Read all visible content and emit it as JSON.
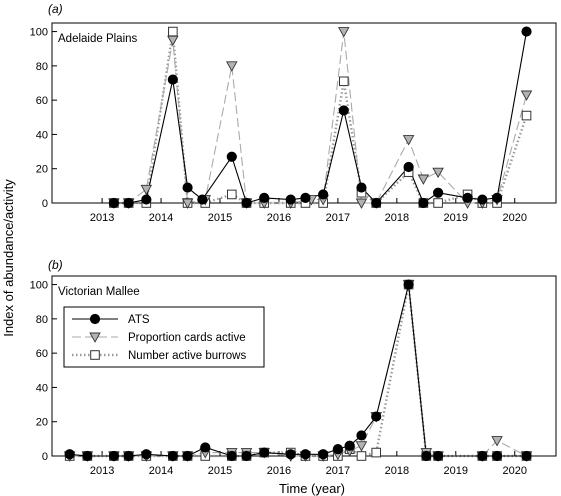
{
  "chart_data": [
    {
      "type": "line",
      "panel_label": "(a)",
      "title": "Adelaide Plains",
      "xlabel": "Time (year)",
      "ylabel": "Index of abundance/activity",
      "xlim": [
        2012.15,
        2020.7
      ],
      "ylim": [
        0,
        105
      ],
      "x_ticks": [
        "2013",
        "2014",
        "2015",
        "2016",
        "2017",
        "2018",
        "2019",
        "2020"
      ],
      "y_ticks": [
        "0",
        "20",
        "40",
        "60",
        "80",
        "100"
      ],
      "grid": false,
      "legend": "none",
      "series": [
        {
          "name": "ATS",
          "color": "#000000",
          "marker": "circle",
          "line": "solid",
          "points": [
            [
              2013.2,
              0
            ],
            [
              2013.45,
              0
            ],
            [
              2013.75,
              2
            ],
            [
              2014.2,
              72
            ],
            [
              2014.45,
              9
            ],
            [
              2014.7,
              2
            ],
            [
              2015.2,
              27
            ],
            [
              2015.45,
              0
            ],
            [
              2015.75,
              3
            ],
            [
              2016.2,
              2
            ],
            [
              2016.45,
              3
            ],
            [
              2016.75,
              5
            ],
            [
              2017.1,
              54
            ],
            [
              2017.4,
              9
            ],
            [
              2017.65,
              0
            ],
            [
              2018.2,
              21
            ],
            [
              2018.45,
              0
            ],
            [
              2018.7,
              6
            ],
            [
              2019.2,
              3
            ],
            [
              2019.45,
              2
            ],
            [
              2019.7,
              3
            ],
            [
              2020.2,
              100
            ]
          ]
        },
        {
          "name": "Proportion cards active",
          "color": "#aaaaaa",
          "marker": "triangle-down",
          "line": "dashed",
          "points": [
            [
              2013.2,
              0
            ],
            [
              2013.45,
              0
            ],
            [
              2013.75,
              8
            ],
            [
              2014.2,
              95
            ],
            [
              2014.45,
              0
            ],
            [
              2014.75,
              2
            ],
            [
              2015.2,
              80
            ],
            [
              2015.45,
              0
            ],
            [
              2015.75,
              0
            ],
            [
              2016.2,
              0
            ],
            [
              2016.55,
              2
            ],
            [
              2016.75,
              2
            ],
            [
              2017.1,
              100
            ],
            [
              2017.4,
              0
            ],
            [
              2017.65,
              0
            ],
            [
              2018.2,
              37
            ],
            [
              2018.45,
              14
            ],
            [
              2018.7,
              18
            ],
            [
              2019.2,
              0
            ],
            [
              2019.45,
              0
            ],
            [
              2019.7,
              2
            ],
            [
              2020.2,
              63
            ]
          ]
        },
        {
          "name": "Number active burrows",
          "color": "#999999",
          "marker": "square",
          "line": "dotted",
          "points": [
            [
              2013.2,
              0
            ],
            [
              2013.45,
              0
            ],
            [
              2013.75,
              0
            ],
            [
              2014.2,
              100
            ],
            [
              2014.45,
              0
            ],
            [
              2014.75,
              0
            ],
            [
              2015.2,
              5
            ],
            [
              2015.45,
              0
            ],
            [
              2015.75,
              0
            ],
            [
              2016.2,
              0
            ],
            [
              2016.45,
              0
            ],
            [
              2016.75,
              0
            ],
            [
              2017.1,
              71
            ],
            [
              2017.4,
              6
            ],
            [
              2017.65,
              0
            ],
            [
              2018.2,
              18
            ],
            [
              2018.45,
              0
            ],
            [
              2018.7,
              0
            ],
            [
              2019.2,
              5
            ],
            [
              2019.45,
              0
            ],
            [
              2019.7,
              0
            ],
            [
              2020.2,
              51
            ]
          ]
        }
      ]
    },
    {
      "type": "line",
      "panel_label": "(b)",
      "title": "Victorian Mallee",
      "xlabel": "Time (year)",
      "ylabel": "Index of abundance/activity",
      "xlim": [
        2012.15,
        2020.7
      ],
      "ylim": [
        0,
        105
      ],
      "x_ticks": [
        "2013",
        "2014",
        "2015",
        "2016",
        "2017",
        "2018",
        "2019",
        "2020"
      ],
      "y_ticks": [
        "0",
        "20",
        "40",
        "60",
        "80",
        "100"
      ],
      "grid": false,
      "legend": "upper-left",
      "series": [
        {
          "name": "ATS",
          "color": "#000000",
          "marker": "circle",
          "line": "solid",
          "points": [
            [
              2012.45,
              1
            ],
            [
              2012.75,
              0
            ],
            [
              2013.2,
              0
            ],
            [
              2013.45,
              0
            ],
            [
              2013.75,
              1
            ],
            [
              2014.2,
              0
            ],
            [
              2014.45,
              0
            ],
            [
              2014.75,
              5
            ],
            [
              2015.2,
              0
            ],
            [
              2015.45,
              0
            ],
            [
              2015.75,
              2
            ],
            [
              2016.2,
              1
            ],
            [
              2016.45,
              1
            ],
            [
              2016.75,
              1
            ],
            [
              2017.0,
              4
            ],
            [
              2017.2,
              6
            ],
            [
              2017.4,
              12
            ],
            [
              2017.65,
              23
            ],
            [
              2018.2,
              100
            ],
            [
              2018.5,
              0
            ],
            [
              2018.7,
              0
            ],
            [
              2019.45,
              0
            ],
            [
              2019.7,
              0
            ],
            [
              2020.2,
              0
            ]
          ]
        },
        {
          "name": "Proportion cards active",
          "color": "#aaaaaa",
          "marker": "triangle-down",
          "line": "dashed",
          "points": [
            [
              2012.45,
              0
            ],
            [
              2012.75,
              0
            ],
            [
              2013.2,
              0
            ],
            [
              2013.45,
              0
            ],
            [
              2013.75,
              0
            ],
            [
              2014.2,
              0
            ],
            [
              2014.45,
              0
            ],
            [
              2014.75,
              2
            ],
            [
              2015.2,
              2
            ],
            [
              2015.45,
              2
            ],
            [
              2015.75,
              2
            ],
            [
              2016.2,
              0
            ],
            [
              2016.45,
              0
            ],
            [
              2016.75,
              0
            ],
            [
              2017.0,
              1
            ],
            [
              2017.2,
              3
            ],
            [
              2017.4,
              6
            ],
            [
              2017.65,
              23
            ],
            [
              2018.2,
              100
            ],
            [
              2018.5,
              2
            ],
            [
              2018.7,
              0
            ],
            [
              2019.45,
              0
            ],
            [
              2019.7,
              9
            ],
            [
              2020.2,
              0
            ]
          ]
        },
        {
          "name": "Number active burrows",
          "color": "#999999",
          "marker": "square",
          "line": "dotted",
          "points": [
            [
              2012.45,
              0
            ],
            [
              2012.75,
              0
            ],
            [
              2013.2,
              0
            ],
            [
              2013.45,
              0
            ],
            [
              2013.75,
              0
            ],
            [
              2014.2,
              0
            ],
            [
              2014.45,
              0
            ],
            [
              2014.75,
              0
            ],
            [
              2015.2,
              0
            ],
            [
              2015.45,
              0
            ],
            [
              2015.75,
              2
            ],
            [
              2016.2,
              2
            ],
            [
              2016.45,
              0
            ],
            [
              2016.75,
              0
            ],
            [
              2017.0,
              0
            ],
            [
              2017.2,
              4
            ],
            [
              2017.4,
              0
            ],
            [
              2017.65,
              2
            ],
            [
              2018.2,
              100
            ],
            [
              2018.5,
              0
            ],
            [
              2018.7,
              0
            ],
            [
              2019.45,
              0
            ],
            [
              2019.7,
              0
            ],
            [
              2020.2,
              0
            ]
          ]
        }
      ]
    }
  ]
}
